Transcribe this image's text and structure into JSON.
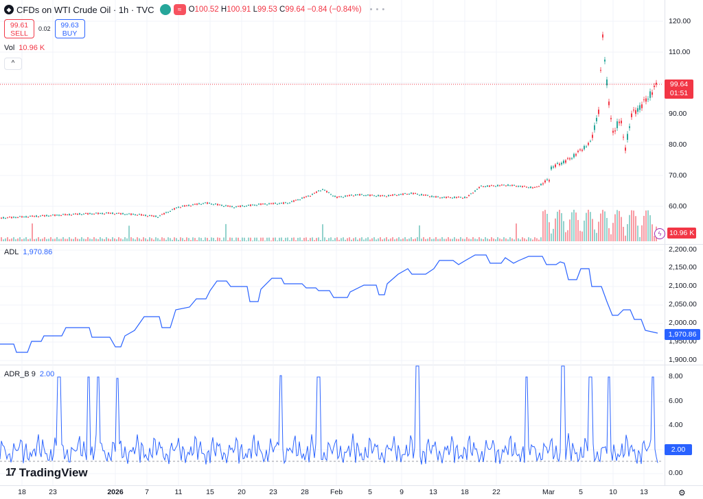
{
  "header": {
    "title": "CFDs on WTI Crude Oil · 1h · TVC",
    "pill_glyph": "≈",
    "ohlc": [
      {
        "k": "O",
        "v": "100.52"
      },
      {
        "k": "H",
        "v": "100.91"
      },
      {
        "k": "L",
        "v": "99.53"
      },
      {
        "k": "C",
        "v": "99.64"
      }
    ],
    "change": "−0.84 (−0.84%)",
    "more": "• • •"
  },
  "trade": {
    "sell_price": "99.61",
    "sell_label": "SELL",
    "spread": "0.02",
    "buy_price": "99.63",
    "buy_label": "BUY"
  },
  "volume": {
    "label": "Vol",
    "value": "10.96 K",
    "tag": "10.96 K",
    "collapse_glyph": "^"
  },
  "price_axis": [
    "120.00",
    "110.00",
    "100.00",
    "90.00",
    "80.00",
    "70.00",
    "60.00"
  ],
  "price_tag": {
    "price": "99.64",
    "countdown": "01:51"
  },
  "adl": {
    "label": "ADL",
    "value": "1,970.86",
    "tag": "1,970.86",
    "axis": [
      "2,200.00",
      "2,150.00",
      "2,100.00",
      "2,050.00",
      "2,000.00",
      "1,950.00",
      "1,900.00"
    ]
  },
  "adr": {
    "label": "ADR_B 9",
    "value": "2.00",
    "tag": "2.00",
    "axis": [
      "8.00",
      "6.00",
      "4.00",
      "2.00",
      "0.00"
    ]
  },
  "time_axis": [
    "18",
    "23",
    "2026",
    "7",
    "11",
    "15",
    "20",
    "23",
    "28",
    "Feb",
    "5",
    "9",
    "13",
    "18",
    "22",
    "Mar",
    "5",
    "10",
    "13"
  ],
  "branding": {
    "logo_mark": "17",
    "name": "TradingView"
  },
  "settings_icon": "gear-icon",
  "colors": {
    "up": "#26a69a",
    "down": "#f23645",
    "line": "#2962ff",
    "grid": "#f0f3fa"
  }
}
